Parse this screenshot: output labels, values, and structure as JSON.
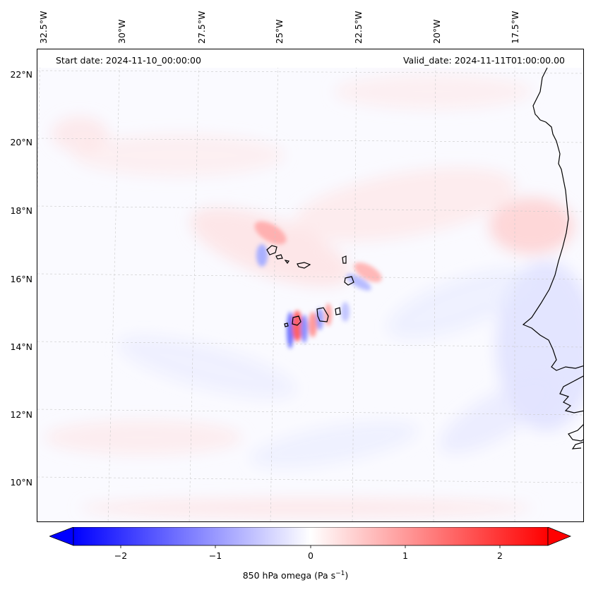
{
  "header": {
    "start_date": "Start date: 2024-11-10_00:00:00",
    "valid_date": "Valid_date: 2024-11-11T01:00:00.00"
  },
  "map": {
    "lon_labels": [
      "32.5°W",
      "30°W",
      "27.5°W",
      "25°W",
      "22.5°W",
      "20°W",
      "17.5°W"
    ],
    "lat_labels": [
      "22°N",
      "20°N",
      "18°N",
      "16°N",
      "14°N",
      "12°N",
      "10°N"
    ],
    "gridlines": true,
    "coastlines": true
  },
  "colorbar": {
    "ticks": [
      "−2",
      "−1",
      "0",
      "1",
      "2"
    ],
    "label": "850 hPa omega (Pa s",
    "label_unit_exponent": "−1",
    "label_close": ")",
    "colormap": "bwr",
    "min_color": "#0000ff",
    "mid_color": "#ffffff",
    "max_color": "#ff0000",
    "range": [
      -2.5,
      2.5
    ],
    "extend": "both"
  }
}
